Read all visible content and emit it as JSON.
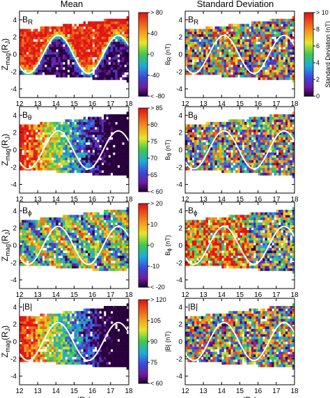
{
  "column_titles": [
    "Mean",
    "Standard Deviation"
  ],
  "shared_axes": {
    "xlabel_main": "ρ",
    "xlabel_sub": "mag",
    "xlabel_unit": "(R",
    "xlabel_unit_sub": "J",
    "xlabel_close": ")",
    "ylabel_main": "Z",
    "ylabel_sub": "mag",
    "ylabel_unit": "(R",
    "ylabel_unit_sub": "J",
    "ylabel_close": ")",
    "xticks": [
      "12",
      "13",
      "14",
      "15",
      "16",
      "17",
      "18"
    ],
    "yticks": [
      "4",
      "2",
      "0",
      "-2",
      "-4"
    ]
  },
  "chart_data": [
    {
      "type": "heatmap",
      "panel": "mean",
      "component_label": "B",
      "component_sub": "R",
      "colorbar_label": "B",
      "colorbar_label_sub": "R",
      "colorbar_unit": "(nT)",
      "colorbar_ticks": [
        "> 80",
        "40",
        "0",
        "-40",
        "< -80"
      ],
      "colorscale": "rainbow",
      "xlim": [
        12,
        18
      ],
      "ylim": [
        -5,
        5
      ],
      "pattern": "sign change across current sheet"
    },
    {
      "type": "heatmap",
      "panel": "std",
      "component_label": "B",
      "component_sub": "R",
      "colorbar_label": "Standard Deviation (nT)",
      "colorbar_ticks": [
        "> 10",
        "8",
        "6",
        "4",
        "2",
        "0"
      ],
      "colorscale": "rainbow",
      "xlim": [
        12,
        18
      ],
      "ylim": [
        -5,
        5
      ],
      "pattern": "noisy"
    },
    {
      "type": "heatmap",
      "panel": "mean",
      "component_label": "B",
      "component_sub": "θ",
      "colorbar_label": "B",
      "colorbar_label_sub": "θ",
      "colorbar_unit": "(nT)",
      "colorbar_ticks": [
        "> 85",
        "80",
        "75",
        "70",
        "65",
        "< 60"
      ],
      "colorscale": "rainbow",
      "xlim": [
        12,
        18
      ],
      "ylim": [
        -5,
        5
      ],
      "pattern": "decreasing with distance"
    },
    {
      "type": "heatmap",
      "panel": "std",
      "component_label": "B",
      "component_sub": "θ",
      "xlim": [
        12,
        18
      ],
      "ylim": [
        -5,
        5
      ],
      "pattern": "noisy"
    },
    {
      "type": "heatmap",
      "panel": "mean",
      "component_label": "B",
      "component_sub": "ϕ",
      "colorbar_label": "B",
      "colorbar_label_sub": "ϕ",
      "colorbar_unit": "(nT)",
      "colorbar_ticks": [
        "> 20",
        "10",
        "0",
        "-10",
        "< -20"
      ],
      "colorscale": "rainbow",
      "xlim": [
        12,
        18
      ],
      "ylim": [
        -5,
        5
      ],
      "pattern": "mostly near zero"
    },
    {
      "type": "heatmap",
      "panel": "std",
      "component_label": "B",
      "component_sub": "ϕ",
      "xlim": [
        12,
        18
      ],
      "ylim": [
        -5,
        5
      ],
      "pattern": "high near inner edge"
    },
    {
      "type": "heatmap",
      "panel": "mean",
      "component_label": "|B|",
      "colorbar_label": "|B| (nT)",
      "colorbar_ticks": [
        "> 120",
        "105",
        "90",
        "75",
        "< 60"
      ],
      "colorscale": "rainbow",
      "xlim": [
        12,
        18
      ],
      "ylim": [
        -5,
        5
      ],
      "pattern": "decreasing with distance"
    },
    {
      "type": "heatmap",
      "panel": "std",
      "component_label": "|B|",
      "xlim": [
        12,
        18
      ],
      "ylim": [
        -5,
        5
      ],
      "pattern": "noisy"
    }
  ],
  "current_sheet_curve": {
    "color": "#ffffff",
    "shape": "sinusoid",
    "period_rj": 3.3,
    "amplitude_rj": 2.2
  }
}
